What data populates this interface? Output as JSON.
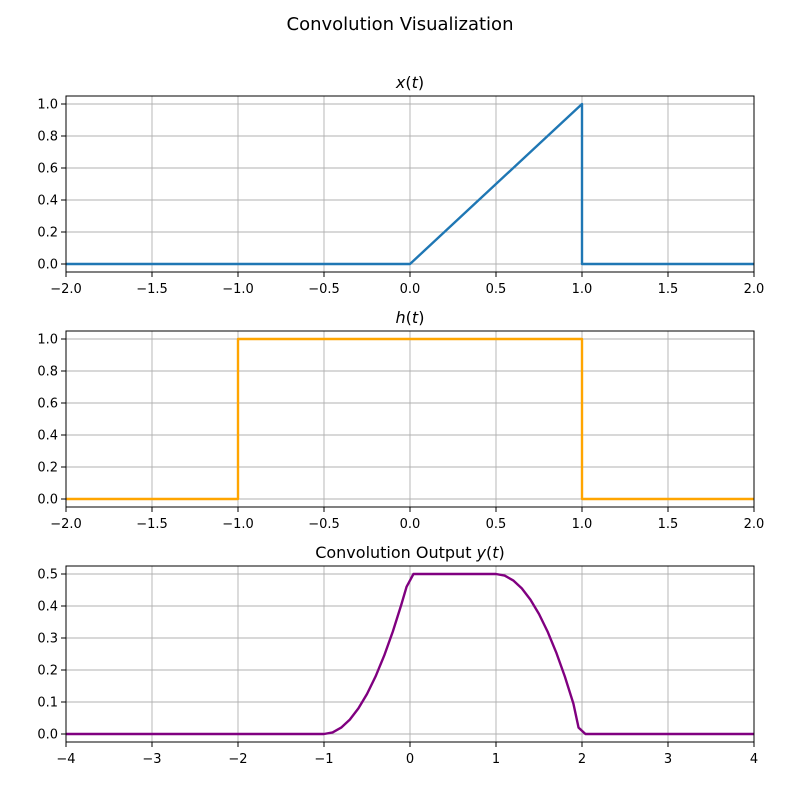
{
  "figure_title": "Convolution Visualization",
  "chart_data": [
    {
      "type": "line",
      "title": "x(t)",
      "title_parts": [
        {
          "text": "x",
          "italic": true
        },
        {
          "text": "(",
          "italic": false
        },
        {
          "text": "t",
          "italic": true
        },
        {
          "text": ")",
          "italic": false
        }
      ],
      "xlim": [
        -2,
        2
      ],
      "ylim": [
        -0.05,
        1.05
      ],
      "xticks": [
        -2.0,
        -1.5,
        -1.0,
        -0.5,
        0.0,
        0.5,
        1.0,
        1.5,
        2.0
      ],
      "xtick_labels": [
        "−2.0",
        "−1.5",
        "−1.0",
        "−0.5",
        "0.0",
        "0.5",
        "1.0",
        "1.5",
        "2.0"
      ],
      "yticks": [
        0.0,
        0.2,
        0.4,
        0.6,
        0.8,
        1.0
      ],
      "ytick_labels": [
        "0.0",
        "0.2",
        "0.4",
        "0.6",
        "0.8",
        "1.0"
      ],
      "grid": true,
      "series": [
        {
          "color": "#1f77b4",
          "x": [
            -2,
            0,
            1,
            1,
            2
          ],
          "y": [
            0,
            0,
            1,
            0,
            0
          ]
        }
      ]
    },
    {
      "type": "line",
      "title": "h(t)",
      "title_parts": [
        {
          "text": "h",
          "italic": true
        },
        {
          "text": "(",
          "italic": false
        },
        {
          "text": "t",
          "italic": true
        },
        {
          "text": ")",
          "italic": false
        }
      ],
      "xlim": [
        -2,
        2
      ],
      "ylim": [
        -0.05,
        1.05
      ],
      "xticks": [
        -2.0,
        -1.5,
        -1.0,
        -0.5,
        0.0,
        0.5,
        1.0,
        1.5,
        2.0
      ],
      "xtick_labels": [
        "−2.0",
        "−1.5",
        "−1.0",
        "−0.5",
        "0.0",
        "0.5",
        "1.0",
        "1.5",
        "2.0"
      ],
      "yticks": [
        0.0,
        0.2,
        0.4,
        0.6,
        0.8,
        1.0
      ],
      "ytick_labels": [
        "0.0",
        "0.2",
        "0.4",
        "0.6",
        "0.8",
        "1.0"
      ],
      "grid": true,
      "series": [
        {
          "color": "#ffa500",
          "x": [
            -2,
            -1,
            -1,
            1,
            1,
            2
          ],
          "y": [
            0,
            0,
            1,
            1,
            0,
            0
          ]
        }
      ]
    },
    {
      "type": "line",
      "title": "Convolution Output y(t)",
      "title_parts": [
        {
          "text": "Convolution Output ",
          "italic": false
        },
        {
          "text": "y",
          "italic": true
        },
        {
          "text": "(",
          "italic": false
        },
        {
          "text": "t",
          "italic": true
        },
        {
          "text": ")",
          "italic": false
        }
      ],
      "xlim": [
        -4,
        4
      ],
      "ylim": [
        -0.025,
        0.525
      ],
      "xticks": [
        -4,
        -3,
        -2,
        -1,
        0,
        1,
        2,
        3,
        4
      ],
      "xtick_labels": [
        "−4",
        "−3",
        "−2",
        "−1",
        "0",
        "1",
        "2",
        "3",
        "4"
      ],
      "yticks": [
        0.0,
        0.1,
        0.2,
        0.3,
        0.4,
        0.5
      ],
      "ytick_labels": [
        "0.0",
        "0.1",
        "0.2",
        "0.3",
        "0.4",
        "0.5"
      ],
      "grid": true,
      "series": [
        {
          "color": "#800080",
          "x": [
            -4,
            -1,
            -0.9,
            -0.8,
            -0.7,
            -0.6,
            -0.5,
            -0.4,
            -0.3,
            -0.2,
            -0.1,
            -0.04,
            0,
            0.04,
            0.5,
            1.0,
            1.1,
            1.2,
            1.3,
            1.4,
            1.5,
            1.6,
            1.7,
            1.8,
            1.9,
            1.96,
            2.04,
            4
          ],
          "y": [
            0,
            0,
            0.005,
            0.02,
            0.045,
            0.08,
            0.125,
            0.18,
            0.245,
            0.32,
            0.405,
            0.46,
            0.48,
            0.5,
            0.5,
            0.5,
            0.495,
            0.48,
            0.455,
            0.42,
            0.375,
            0.32,
            0.255,
            0.18,
            0.095,
            0.02,
            0,
            0
          ]
        }
      ]
    }
  ]
}
